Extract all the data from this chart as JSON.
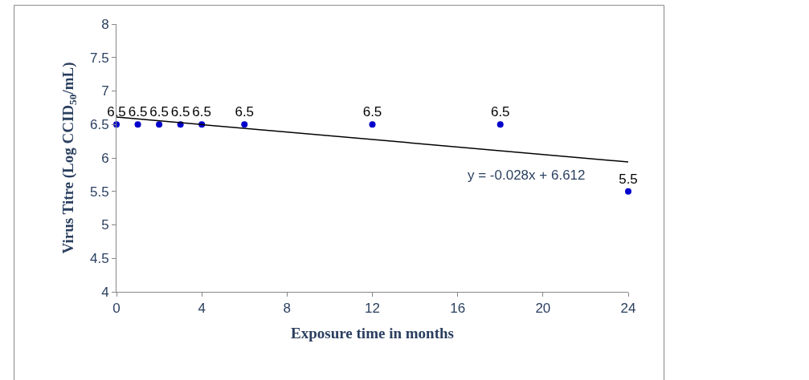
{
  "chart_data": {
    "type": "scatter",
    "xlabel": "Exposure time in months",
    "ylabel": "Virus Titre (Log CCID$_{50}$/mL)",
    "series": [
      {
        "color": "#0000cc",
        "x": [
          0,
          1,
          2,
          3,
          4,
          6,
          12,
          18,
          24
        ],
        "values": [
          6.5,
          6.5,
          6.5,
          6.5,
          6.5,
          6.5,
          6.5,
          6.5,
          5.5
        ],
        "data_labels": true,
        "marker": "circle"
      },
      {
        "type": "line",
        "color": "#000000",
        "x": [
          0,
          24
        ],
        "values": [
          6.61,
          5.94
        ],
        "line_style": "solid",
        "marker": "none"
      }
    ],
    "annotations": [
      "y = -0.028x + 6.612"
    ],
    "xlim": [
      0,
      24
    ],
    "xticks": [
      0,
      4,
      8,
      12,
      16,
      20,
      24
    ],
    "ylim": [
      4,
      8
    ],
    "yticks": [
      4,
      4.5,
      5,
      5.5,
      6,
      6.5,
      7,
      7.5,
      8
    ]
  }
}
